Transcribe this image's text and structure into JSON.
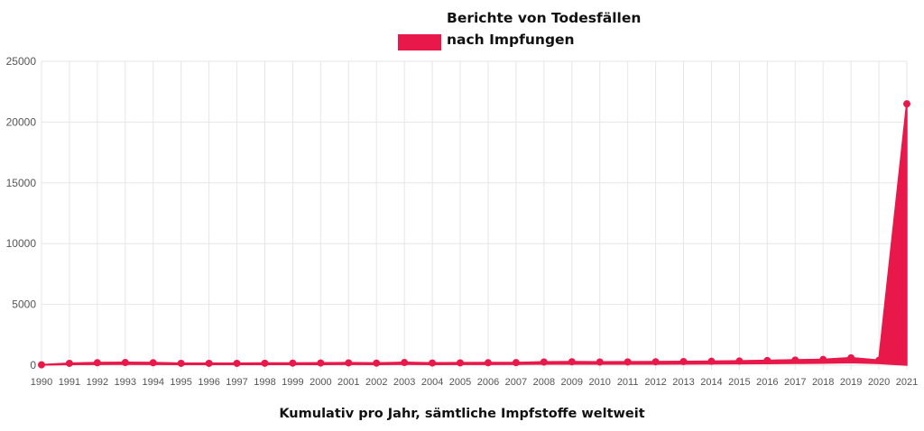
{
  "chart_data": {
    "type": "area",
    "title": "",
    "caption": "Kumulativ pro Jahr, sämtliche Impfstoffe weltweit",
    "xlabel": "",
    "ylabel": "",
    "ylim": [
      0,
      25000
    ],
    "yticks": [
      "0",
      "5000",
      "10000",
      "15000",
      "20000",
      "25000"
    ],
    "grid": true,
    "legend_position": "top-center",
    "categories": [
      "1990",
      "1991",
      "1992",
      "1993",
      "1994",
      "1995",
      "1996",
      "1997",
      "1998",
      "1999",
      "2000",
      "2001",
      "2002",
      "2003",
      "2004",
      "2005",
      "2006",
      "2007",
      "2008",
      "2009",
      "2010",
      "2011",
      "2012",
      "2013",
      "2014",
      "2015",
      "2016",
      "2017",
      "2018",
      "2019",
      "2020",
      "2021"
    ],
    "series": [
      {
        "name_lines": [
          "Berichte von Todesfällen",
          "nach Impfungen"
        ],
        "color": "#e8194a",
        "values": [
          30,
          150,
          200,
          220,
          200,
          150,
          150,
          150,
          160,
          170,
          180,
          190,
          170,
          220,
          180,
          190,
          200,
          210,
          260,
          280,
          260,
          270,
          280,
          300,
          320,
          340,
          380,
          420,
          470,
          600,
          400,
          21500
        ]
      }
    ]
  }
}
